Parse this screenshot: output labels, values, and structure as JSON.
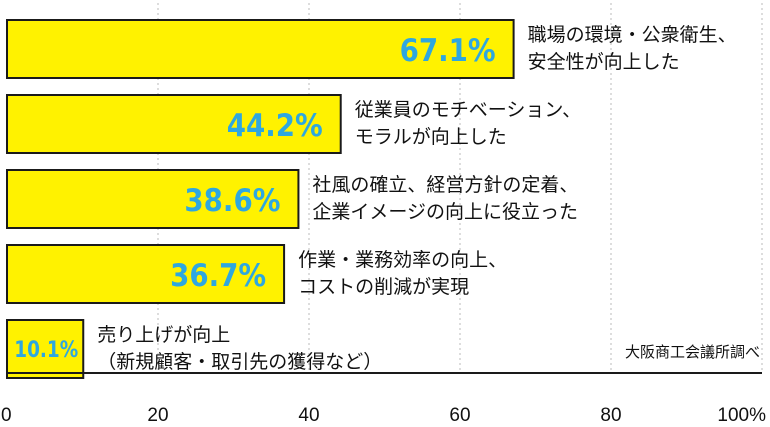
{
  "chart_data": {
    "type": "bar",
    "orientation": "horizontal",
    "categories": [
      [
        "職場の環境・公衆衛生、",
        "安全性が向上した"
      ],
      [
        "従業員のモチベーション、",
        "モラルが向上した"
      ],
      [
        "社風の確立、経営方針の定着、",
        "企業イメージの向上に役立った"
      ],
      [
        "作業・業務効率の向上、",
        "コストの削減が実現"
      ],
      [
        "売り上げが向上",
        "（新規顧客・取引先の獲得など）"
      ]
    ],
    "values": [
      67.1,
      44.2,
      38.6,
      36.7,
      10.1
    ],
    "data_labels": [
      "67.1%",
      "44.2%",
      "38.6%",
      "36.7%",
      "10.1%"
    ],
    "xlim": [
      0,
      100
    ],
    "xticks": [
      {
        "value": 0,
        "label": "0"
      },
      {
        "value": 20,
        "label": "20"
      },
      {
        "value": 40,
        "label": "40"
      },
      {
        "value": 60,
        "label": "60"
      },
      {
        "value": 80,
        "label": "80"
      },
      {
        "value": 100,
        "label": "100%"
      }
    ],
    "grid": "vertical dashed",
    "source": "大阪商工会議所調べ",
    "colors": {
      "bar_fill": "#fff200",
      "bar_stroke": "#1a1a1a",
      "value_text": "#2ea7e0",
      "grid": "#bbbbbb",
      "axis": "#1a1a1a"
    }
  }
}
